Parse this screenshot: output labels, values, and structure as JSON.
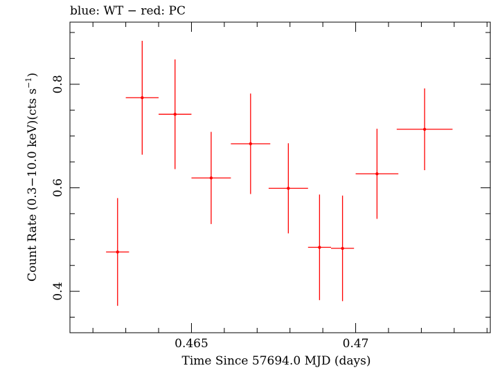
{
  "chart_data": {
    "type": "scatter",
    "title": "blue: WT − red: PC",
    "xlabel": "Time Since 57694.0 MJD (days)",
    "ylabel": "Count Rate (0.3−10.0 keV)(cts s",
    "ylabel_sup": "−1",
    "ylabel_end": ")",
    "xlim": [
      0.4613,
      0.4741
    ],
    "ylim": [
      0.32,
      0.92
    ],
    "xticks": [
      0.465,
      0.47
    ],
    "xtick_labels": [
      "0.465",
      "0.47"
    ],
    "yticks": [
      0.4,
      0.6,
      0.8
    ],
    "ytick_labels": [
      "0.4",
      "0.6",
      "0.8"
    ],
    "series": [
      {
        "color": "#ff0000",
        "points": [
          {
            "x": 0.46275,
            "y": 0.476,
            "xerr": 0.00035,
            "yerr_low": 0.104,
            "yerr_high": 0.104
          },
          {
            "x": 0.4635,
            "y": 0.774,
            "xerr": 0.0005,
            "yerr_low": 0.11,
            "yerr_high": 0.11
          },
          {
            "x": 0.4645,
            "y": 0.742,
            "xerr": 0.0005,
            "yerr_low": 0.106,
            "yerr_high": 0.106
          },
          {
            "x": 0.4656,
            "y": 0.619,
            "xerr": 0.0006,
            "yerr_low": 0.089,
            "yerr_high": 0.089
          },
          {
            "x": 0.4668,
            "y": 0.685,
            "xerr": 0.0006,
            "yerr_low": 0.097,
            "yerr_high": 0.097
          },
          {
            "x": 0.46795,
            "y": 0.599,
            "xerr": 0.0006,
            "yerr_low": 0.087,
            "yerr_high": 0.087
          },
          {
            "x": 0.4689,
            "y": 0.485,
            "xerr": 0.00035,
            "yerr_low": 0.102,
            "yerr_high": 0.102
          },
          {
            "x": 0.4696,
            "y": 0.483,
            "xerr": 0.00035,
            "yerr_low": 0.102,
            "yerr_high": 0.102
          },
          {
            "x": 0.47065,
            "y": 0.627,
            "xerr": 0.00065,
            "yerr_low": 0.087,
            "yerr_high": 0.087
          },
          {
            "x": 0.4721,
            "y": 0.713,
            "xerr": 0.00085,
            "yerr_low": 0.079,
            "yerr_high": 0.079
          }
        ]
      }
    ],
    "grid": false
  }
}
